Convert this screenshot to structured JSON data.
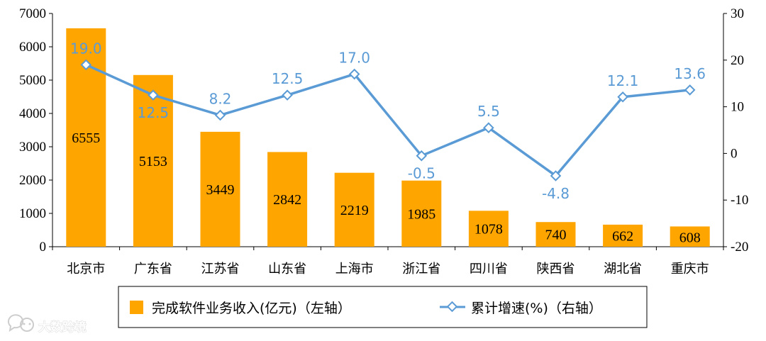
{
  "chart_data": {
    "type": "bar",
    "categories": [
      "北京市",
      "广东省",
      "江苏省",
      "山东省",
      "上海市",
      "浙江省",
      "四川省",
      "陕西省",
      "湖北省",
      "重庆市"
    ],
    "series": [
      {
        "name": "完成软件业务收入(亿元)（左轴）",
        "type": "bar",
        "axis": "left",
        "color": "#FFA500",
        "values": [
          6555,
          5153,
          3449,
          2842,
          2219,
          1985,
          1078,
          740,
          662,
          608
        ],
        "labels": [
          "6555",
          "5153",
          "3449",
          "2842",
          "2219",
          "1985",
          "1078",
          "740",
          "662",
          "608"
        ]
      },
      {
        "name": "累计增速(%)（右轴）",
        "type": "line",
        "axis": "right",
        "color": "#5B9BD5",
        "values": [
          19.0,
          12.5,
          8.2,
          12.5,
          17.0,
          -0.5,
          5.5,
          -4.8,
          12.1,
          13.6
        ],
        "labels": [
          "19.0",
          "12.5",
          "8.2",
          "12.5",
          "17.0",
          "-0.5",
          "5.5",
          "-4.8",
          "12.1",
          "13.6"
        ]
      }
    ],
    "y_left": {
      "min": 0,
      "max": 7000,
      "ticks": [
        "0",
        "1000",
        "2000",
        "3000",
        "4000",
        "5000",
        "6000",
        "7000"
      ]
    },
    "y_right": {
      "min": -20,
      "max": 30,
      "ticks": [
        "-20",
        "-10",
        "0",
        "10",
        "20",
        "30"
      ]
    },
    "grid": false,
    "legend_position": "bottom-center"
  },
  "watermark": {
    "text": "大数跨境",
    "icon": "chat-bubble-logo-icon"
  }
}
